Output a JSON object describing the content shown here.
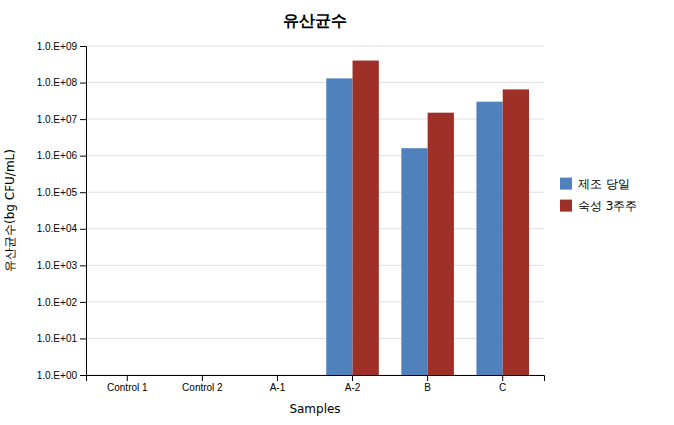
{
  "chart_data": {
    "type": "bar",
    "title": "유산균수",
    "xlabel": "Samples",
    "ylabel": "유산균수(bg CFU/mL)",
    "categories": [
      "Control 1",
      "Control 2",
      "A-1",
      "A-2",
      "B",
      "C"
    ],
    "series": [
      {
        "name": "제조 당일",
        "color": "#4F81BD",
        "values": [
          1.0,
          1.0,
          1.0,
          130000000.0,
          1600000.0,
          30000000.0
        ]
      },
      {
        "name": "숙성 3주주",
        "color": "#9E3028",
        "values": [
          1.0,
          1.0,
          1.0,
          400000000.0,
          15000000.0,
          65000000.0
        ]
      }
    ],
    "ylim": [
      1.0,
      1000000000.0
    ],
    "yticks": [
      {
        "value": 1,
        "label": "1.0.E+00"
      },
      {
        "value": 10,
        "label": "1.0.E+01"
      },
      {
        "value": 100,
        "label": "1.0.E+02"
      },
      {
        "value": 1000,
        "label": "1.0.E+03"
      },
      {
        "value": 10000,
        "label": "1.0.E+04"
      },
      {
        "value": 100000,
        "label": "1.0.E+05"
      },
      {
        "value": 1000000,
        "label": "1.0.E+06"
      },
      {
        "value": 10000000,
        "label": "1.0.E+07"
      },
      {
        "value": 100000000,
        "label": "1.0.E+08"
      },
      {
        "value": 1000000000,
        "label": "1.0.E+09"
      }
    ],
    "log": "y",
    "grid": true,
    "legend": "right"
  }
}
